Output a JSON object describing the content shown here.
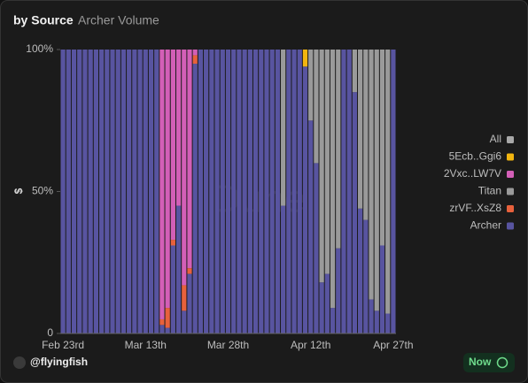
{
  "chart_data": {
    "type": "stacked_bar",
    "title": "by Source",
    "subtitle": "Archer Volume",
    "y_label": "$",
    "watermark": "Dune",
    "footer": {
      "user": "@flyingfish",
      "badge": "Now"
    },
    "categories": [
      "Feb 23rd",
      null,
      null,
      null,
      null,
      null,
      null,
      null,
      null,
      null,
      null,
      null,
      null,
      null,
      null,
      "Mar 13th",
      null,
      null,
      null,
      null,
      null,
      null,
      null,
      null,
      null,
      null,
      null,
      null,
      null,
      null,
      "Mar 28th",
      null,
      null,
      null,
      null,
      null,
      null,
      null,
      null,
      null,
      null,
      null,
      null,
      null,
      null,
      "Apr 12th",
      null,
      null,
      null,
      null,
      null,
      null,
      null,
      null,
      null,
      null,
      null,
      null,
      null,
      null,
      "Apr 27th"
    ],
    "ylim": [
      0,
      100
    ],
    "yticks": [
      {
        "value": 0,
        "label": "0"
      },
      {
        "value": 50,
        "label": "50%"
      },
      {
        "value": 100,
        "label": "100%"
      }
    ],
    "legend": "right",
    "series": [
      {
        "name": "Archer",
        "color": "#5854a0",
        "values": [
          100,
          100,
          100,
          100,
          100,
          100,
          100,
          100,
          100,
          100,
          100,
          100,
          100,
          100,
          100,
          100,
          100,
          100,
          3,
          2,
          31,
          45,
          8,
          21,
          95,
          100,
          100,
          100,
          100,
          100,
          100,
          100,
          100,
          100,
          100,
          100,
          100,
          100,
          100,
          100,
          45,
          100,
          100,
          100,
          94,
          75,
          60,
          18,
          21,
          9,
          30,
          100,
          100,
          85,
          44,
          40,
          12,
          8,
          31,
          7,
          100
        ]
      },
      {
        "name": "zrVF..XsZ8",
        "color": "#e8613c",
        "values": [
          0,
          0,
          0,
          0,
          0,
          0,
          0,
          0,
          0,
          0,
          0,
          0,
          0,
          0,
          0,
          0,
          0,
          0,
          2,
          7,
          2,
          0,
          9,
          2,
          3,
          0,
          0,
          0,
          0,
          0,
          0,
          0,
          0,
          0,
          0,
          0,
          0,
          0,
          0,
          0,
          0,
          0,
          0,
          0,
          0,
          0,
          0,
          0,
          0,
          0,
          0,
          0,
          0,
          0,
          0,
          0,
          0,
          0,
          0,
          0,
          0
        ]
      },
      {
        "name": "Titan",
        "color": "#9a9a9a",
        "values": [
          0,
          0,
          0,
          0,
          0,
          0,
          0,
          0,
          0,
          0,
          0,
          0,
          0,
          0,
          0,
          0,
          0,
          0,
          0,
          0,
          0,
          0,
          0,
          0,
          0,
          0,
          0,
          0,
          0,
          0,
          0,
          0,
          0,
          0,
          0,
          0,
          0,
          0,
          0,
          0,
          55,
          0,
          0,
          0,
          0,
          25,
          40,
          82,
          79,
          91,
          70,
          0,
          0,
          15,
          56,
          60,
          88,
          92,
          69,
          93,
          0
        ]
      },
      {
        "name": "2Vxc..LW7V",
        "color": "#d35fb7",
        "values": [
          0,
          0,
          0,
          0,
          0,
          0,
          0,
          0,
          0,
          0,
          0,
          0,
          0,
          0,
          0,
          0,
          0,
          0,
          95,
          91,
          67,
          55,
          83,
          77,
          2,
          0,
          0,
          0,
          0,
          0,
          0,
          0,
          0,
          0,
          0,
          0,
          0,
          0,
          0,
          0,
          0,
          0,
          0,
          0,
          0,
          0,
          0,
          0,
          0,
          0,
          0,
          0,
          0,
          0,
          0,
          0,
          0,
          0,
          0,
          0,
          0
        ]
      },
      {
        "name": "5Ecb..Ggi6",
        "color": "#f2b50f",
        "values": [
          0,
          0,
          0,
          0,
          0,
          0,
          0,
          0,
          0,
          0,
          0,
          0,
          0,
          0,
          0,
          0,
          0,
          0,
          0,
          0,
          0,
          0,
          0,
          0,
          0,
          0,
          0,
          0,
          0,
          0,
          0,
          0,
          0,
          0,
          0,
          0,
          0,
          0,
          0,
          0,
          0,
          0,
          0,
          0,
          6,
          0,
          0,
          0,
          0,
          0,
          0,
          0,
          0,
          0,
          0,
          0,
          0,
          0,
          0,
          0,
          0
        ]
      },
      {
        "name": "All",
        "color": "#a8a8a8",
        "values": [
          0,
          0,
          0,
          0,
          0,
          0,
          0,
          0,
          0,
          0,
          0,
          0,
          0,
          0,
          0,
          0,
          0,
          0,
          0,
          0,
          0,
          0,
          0,
          0,
          0,
          0,
          0,
          0,
          0,
          0,
          0,
          0,
          0,
          0,
          0,
          0,
          0,
          0,
          0,
          0,
          0,
          0,
          0,
          0,
          0,
          0,
          0,
          0,
          0,
          0,
          0,
          0,
          0,
          0,
          0,
          0,
          0,
          0,
          0,
          0,
          0
        ]
      }
    ]
  }
}
